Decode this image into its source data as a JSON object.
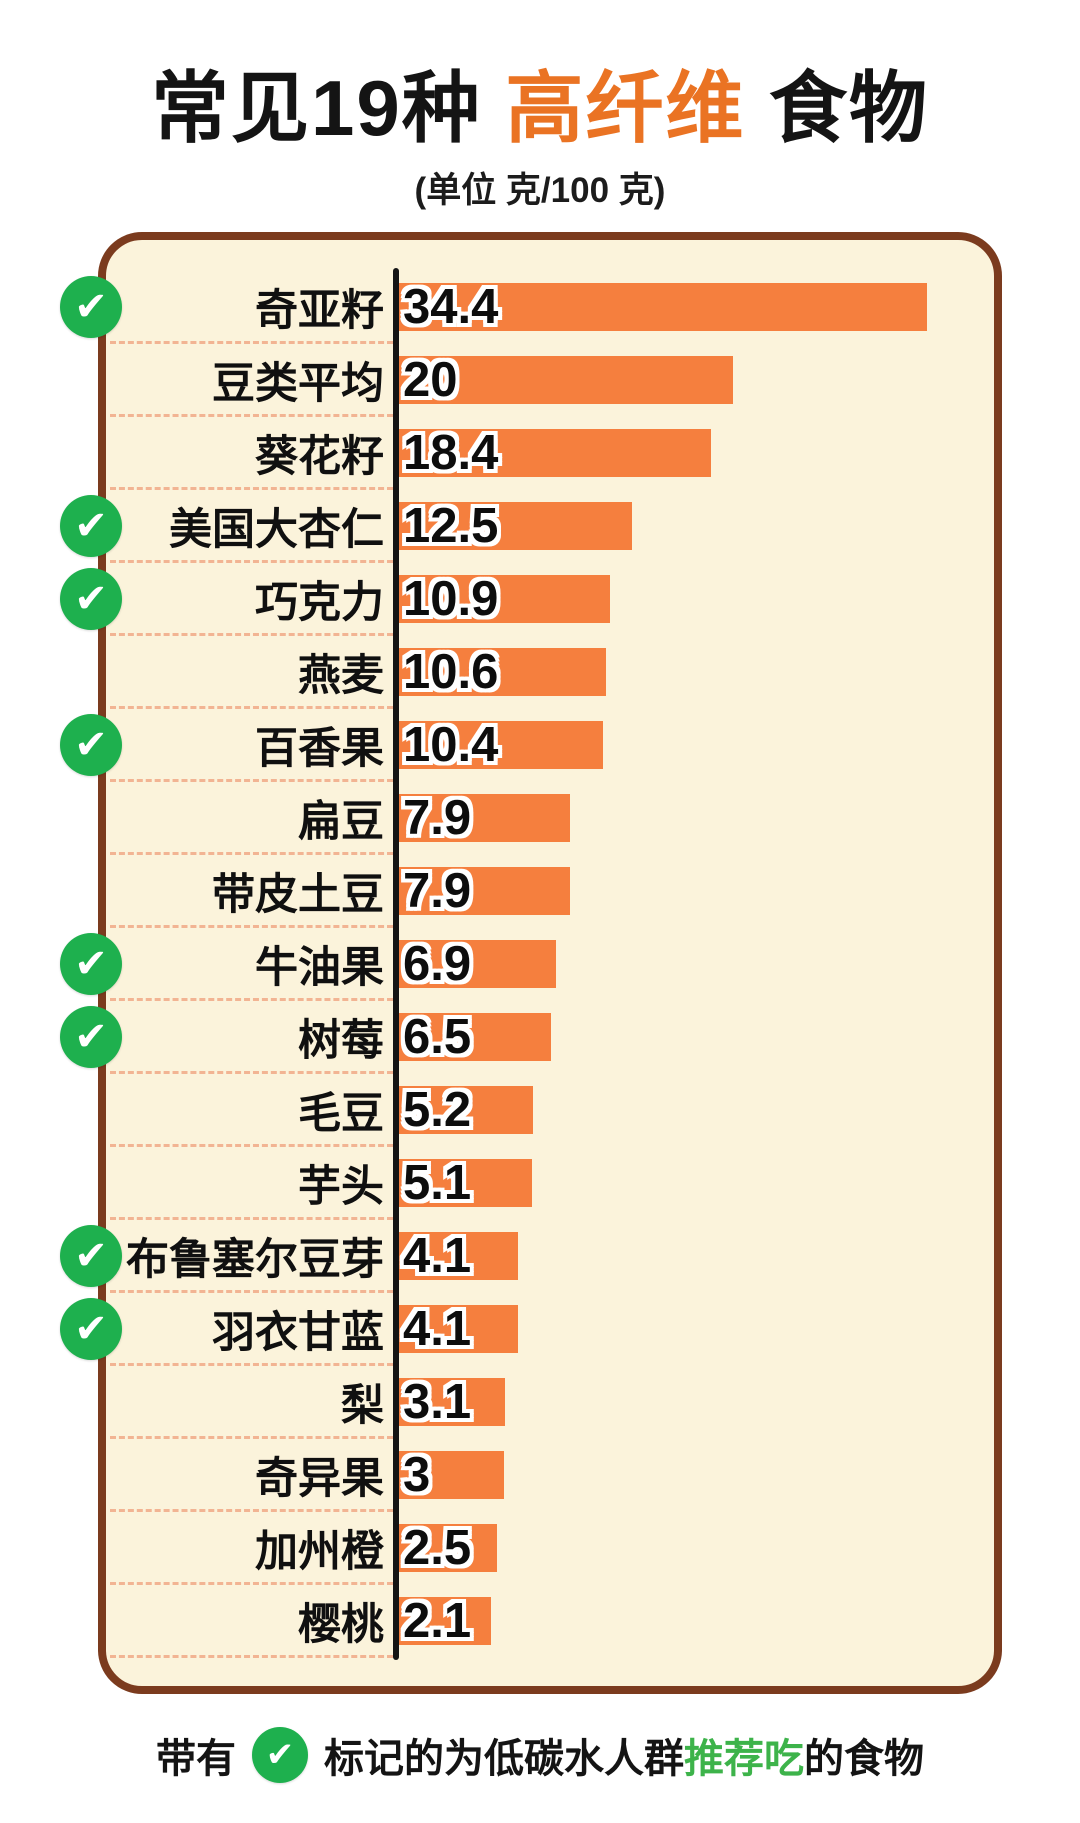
{
  "title": {
    "prefix": "常见19种 ",
    "highlight": "高纤维",
    "suffix": " 食物"
  },
  "subtitle": "(单位 克/100 克)",
  "footer": {
    "before_icon": "带有",
    "after_icon": "标记的为低碳水人群",
    "highlight": "推荐吃",
    "suffix": "的食物"
  },
  "icons": {
    "check": "✔"
  },
  "colors": {
    "bar": "#F57F3E",
    "title_highlight": "#EA7323",
    "check_green": "#1EB04E",
    "footer_green": "#3DB34A",
    "card_bg": "#FBF3DB",
    "card_border": "#7B3B1E",
    "divider": "#F2B493",
    "axis": "#141414"
  },
  "chart_data": {
    "type": "bar",
    "orientation": "horizontal",
    "title": "常见19种高纤维食物",
    "unit_label": "克/100 克",
    "xlim": [
      0,
      35
    ],
    "legend": "带有绿色对勾标记的为低碳水人群推荐吃的食物",
    "items": [
      {
        "label": "奇亚籽",
        "value": 34.4,
        "recommended": true
      },
      {
        "label": "豆类平均",
        "value": 20,
        "recommended": false
      },
      {
        "label": "葵花籽",
        "value": 18.4,
        "recommended": false
      },
      {
        "label": "美国大杏仁",
        "value": 12.5,
        "recommended": true
      },
      {
        "label": "巧克力",
        "value": 10.9,
        "recommended": true
      },
      {
        "label": "燕麦",
        "value": 10.6,
        "recommended": false
      },
      {
        "label": "百香果",
        "value": 10.4,
        "recommended": true
      },
      {
        "label": "扁豆",
        "value": 7.9,
        "recommended": false
      },
      {
        "label": "带皮土豆",
        "value": 7.9,
        "recommended": false
      },
      {
        "label": "牛油果",
        "value": 6.9,
        "recommended": true
      },
      {
        "label": "树莓",
        "value": 6.5,
        "recommended": true
      },
      {
        "label": "毛豆",
        "value": 5.2,
        "recommended": false
      },
      {
        "label": "芋头",
        "value": 5.1,
        "recommended": false
      },
      {
        "label": "布鲁塞尔豆芽",
        "value": 4.1,
        "recommended": true
      },
      {
        "label": "羽衣甘蓝",
        "value": 4.1,
        "recommended": true
      },
      {
        "label": "梨",
        "value": 3.1,
        "recommended": false
      },
      {
        "label": "奇异果",
        "value": 3,
        "recommended": false
      },
      {
        "label": "加州橙",
        "value": 2.5,
        "recommended": false
      },
      {
        "label": "樱桃",
        "value": 2.1,
        "recommended": false
      }
    ]
  }
}
